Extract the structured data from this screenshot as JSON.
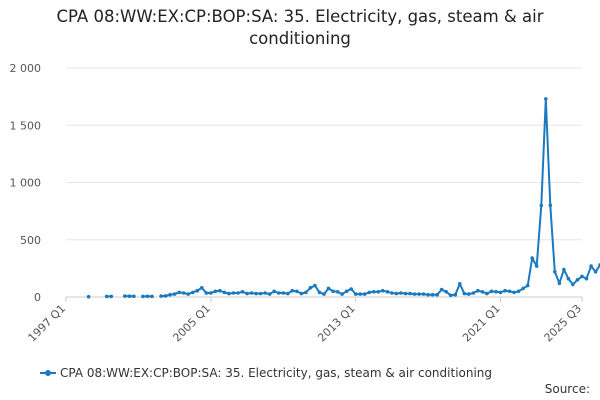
{
  "chart_data": {
    "type": "line",
    "title_line1": "CPA 08:WW:EX:CP:BOP:SA: 35. Electricity, gas, steam & air",
    "title_line2": "conditioning",
    "xlabel": "",
    "ylabel": "",
    "x_ticks": [
      "1997 Q1",
      "2005 Q1",
      "2013 Q1",
      "2021 Q1",
      "2025 Q3"
    ],
    "y_ticks": [
      "0",
      "500",
      "1 000",
      "1 500",
      "2 000"
    ],
    "ylim": [
      0,
      2000
    ],
    "grid": true,
    "legend_position": "bottom",
    "source_label": "Source:",
    "color": "#1a7abf",
    "series": [
      {
        "name": "CPA 08:WW:EX:CP:BOP:SA: 35. Electricity, gas, steam & air conditioning",
        "points": [
          [
            "1998 Q2",
            3
          ],
          [
            "1999 Q2",
            5
          ],
          [
            "1999 Q3",
            5
          ],
          [
            "2000 Q2",
            8
          ],
          [
            "2000 Q3",
            7
          ],
          [
            "2000 Q4",
            6
          ],
          [
            "2001 Q2",
            5
          ],
          [
            "2001 Q3",
            6
          ],
          [
            "2001 Q4",
            5
          ],
          [
            "2002 Q2",
            8
          ],
          [
            "2002 Q3",
            10
          ],
          [
            "2002 Q4",
            20
          ],
          [
            "2003 Q1",
            25
          ],
          [
            "2003 Q2",
            40
          ],
          [
            "2003 Q3",
            35
          ],
          [
            "2003 Q4",
            25
          ],
          [
            "2004 Q1",
            40
          ],
          [
            "2004 Q2",
            55
          ],
          [
            "2004 Q3",
            80
          ],
          [
            "2004 Q4",
            35
          ],
          [
            "2005 Q1",
            35
          ],
          [
            "2005 Q2",
            50
          ],
          [
            "2005 Q3",
            55
          ],
          [
            "2005 Q4",
            40
          ],
          [
            "2006 Q1",
            30
          ],
          [
            "2006 Q2",
            35
          ],
          [
            "2006 Q3",
            35
          ],
          [
            "2006 Q4",
            45
          ],
          [
            "2007 Q1",
            30
          ],
          [
            "2007 Q2",
            35
          ],
          [
            "2007 Q3",
            30
          ],
          [
            "2007 Q4",
            30
          ],
          [
            "2008 Q1",
            35
          ],
          [
            "2008 Q2",
            25
          ],
          [
            "2008 Q3",
            50
          ],
          [
            "2008 Q4",
            35
          ],
          [
            "2009 Q1",
            35
          ],
          [
            "2009 Q2",
            30
          ],
          [
            "2009 Q3",
            55
          ],
          [
            "2009 Q4",
            50
          ],
          [
            "2010 Q1",
            30
          ],
          [
            "2010 Q2",
            40
          ],
          [
            "2010 Q3",
            80
          ],
          [
            "2010 Q4",
            100
          ],
          [
            "2011 Q1",
            40
          ],
          [
            "2011 Q2",
            25
          ],
          [
            "2011 Q3",
            75
          ],
          [
            "2011 Q4",
            50
          ],
          [
            "2012 Q1",
            45
          ],
          [
            "2012 Q2",
            25
          ],
          [
            "2012 Q3",
            50
          ],
          [
            "2012 Q4",
            70
          ],
          [
            "2013 Q1",
            25
          ],
          [
            "2013 Q2",
            25
          ],
          [
            "2013 Q3",
            25
          ],
          [
            "2013 Q4",
            40
          ],
          [
            "2014 Q1",
            45
          ],
          [
            "2014 Q2",
            45
          ],
          [
            "2014 Q3",
            55
          ],
          [
            "2014 Q4",
            45
          ],
          [
            "2015 Q1",
            35
          ],
          [
            "2015 Q2",
            30
          ],
          [
            "2015 Q3",
            35
          ],
          [
            "2015 Q4",
            30
          ],
          [
            "2016 Q1",
            30
          ],
          [
            "2016 Q2",
            25
          ],
          [
            "2016 Q3",
            25
          ],
          [
            "2016 Q4",
            25
          ],
          [
            "2017 Q1",
            20
          ],
          [
            "2017 Q2",
            20
          ],
          [
            "2017 Q3",
            20
          ],
          [
            "2017 Q4",
            65
          ],
          [
            "2018 Q1",
            45
          ],
          [
            "2018 Q2",
            15
          ],
          [
            "2018 Q3",
            20
          ],
          [
            "2018 Q4",
            115
          ],
          [
            "2019 Q1",
            30
          ],
          [
            "2019 Q2",
            25
          ],
          [
            "2019 Q3",
            35
          ],
          [
            "2019 Q4",
            55
          ],
          [
            "2020 Q1",
            45
          ],
          [
            "2020 Q2",
            30
          ],
          [
            "2020 Q3",
            50
          ],
          [
            "2020 Q4",
            45
          ],
          [
            "2021 Q1",
            40
          ],
          [
            "2021 Q2",
            55
          ],
          [
            "2021 Q3",
            50
          ],
          [
            "2021 Q4",
            40
          ],
          [
            "2022 Q1",
            50
          ],
          [
            "2022 Q2",
            75
          ],
          [
            "2022 Q3",
            100
          ],
          [
            "2022 Q4",
            340
          ],
          [
            "2023 Q1",
            270
          ],
          [
            "2023 Q2",
            800
          ],
          [
            "2023 Q3",
            1730
          ],
          [
            "2023 Q4",
            800
          ],
          [
            "2024 Q1",
            220
          ],
          [
            "2024 Q2",
            120
          ],
          [
            "2024 Q3",
            240
          ],
          [
            "2024 Q4",
            160
          ],
          [
            "2025 Q1",
            110
          ],
          [
            "2025 Q2",
            150
          ],
          [
            "2025 Q3",
            180
          ],
          [
            "2025 Q4",
            160
          ],
          [
            "2026 Q1",
            270
          ],
          [
            "2026 Q2",
            220
          ],
          [
            "2026 Q3",
            280
          ]
        ]
      }
    ]
  }
}
